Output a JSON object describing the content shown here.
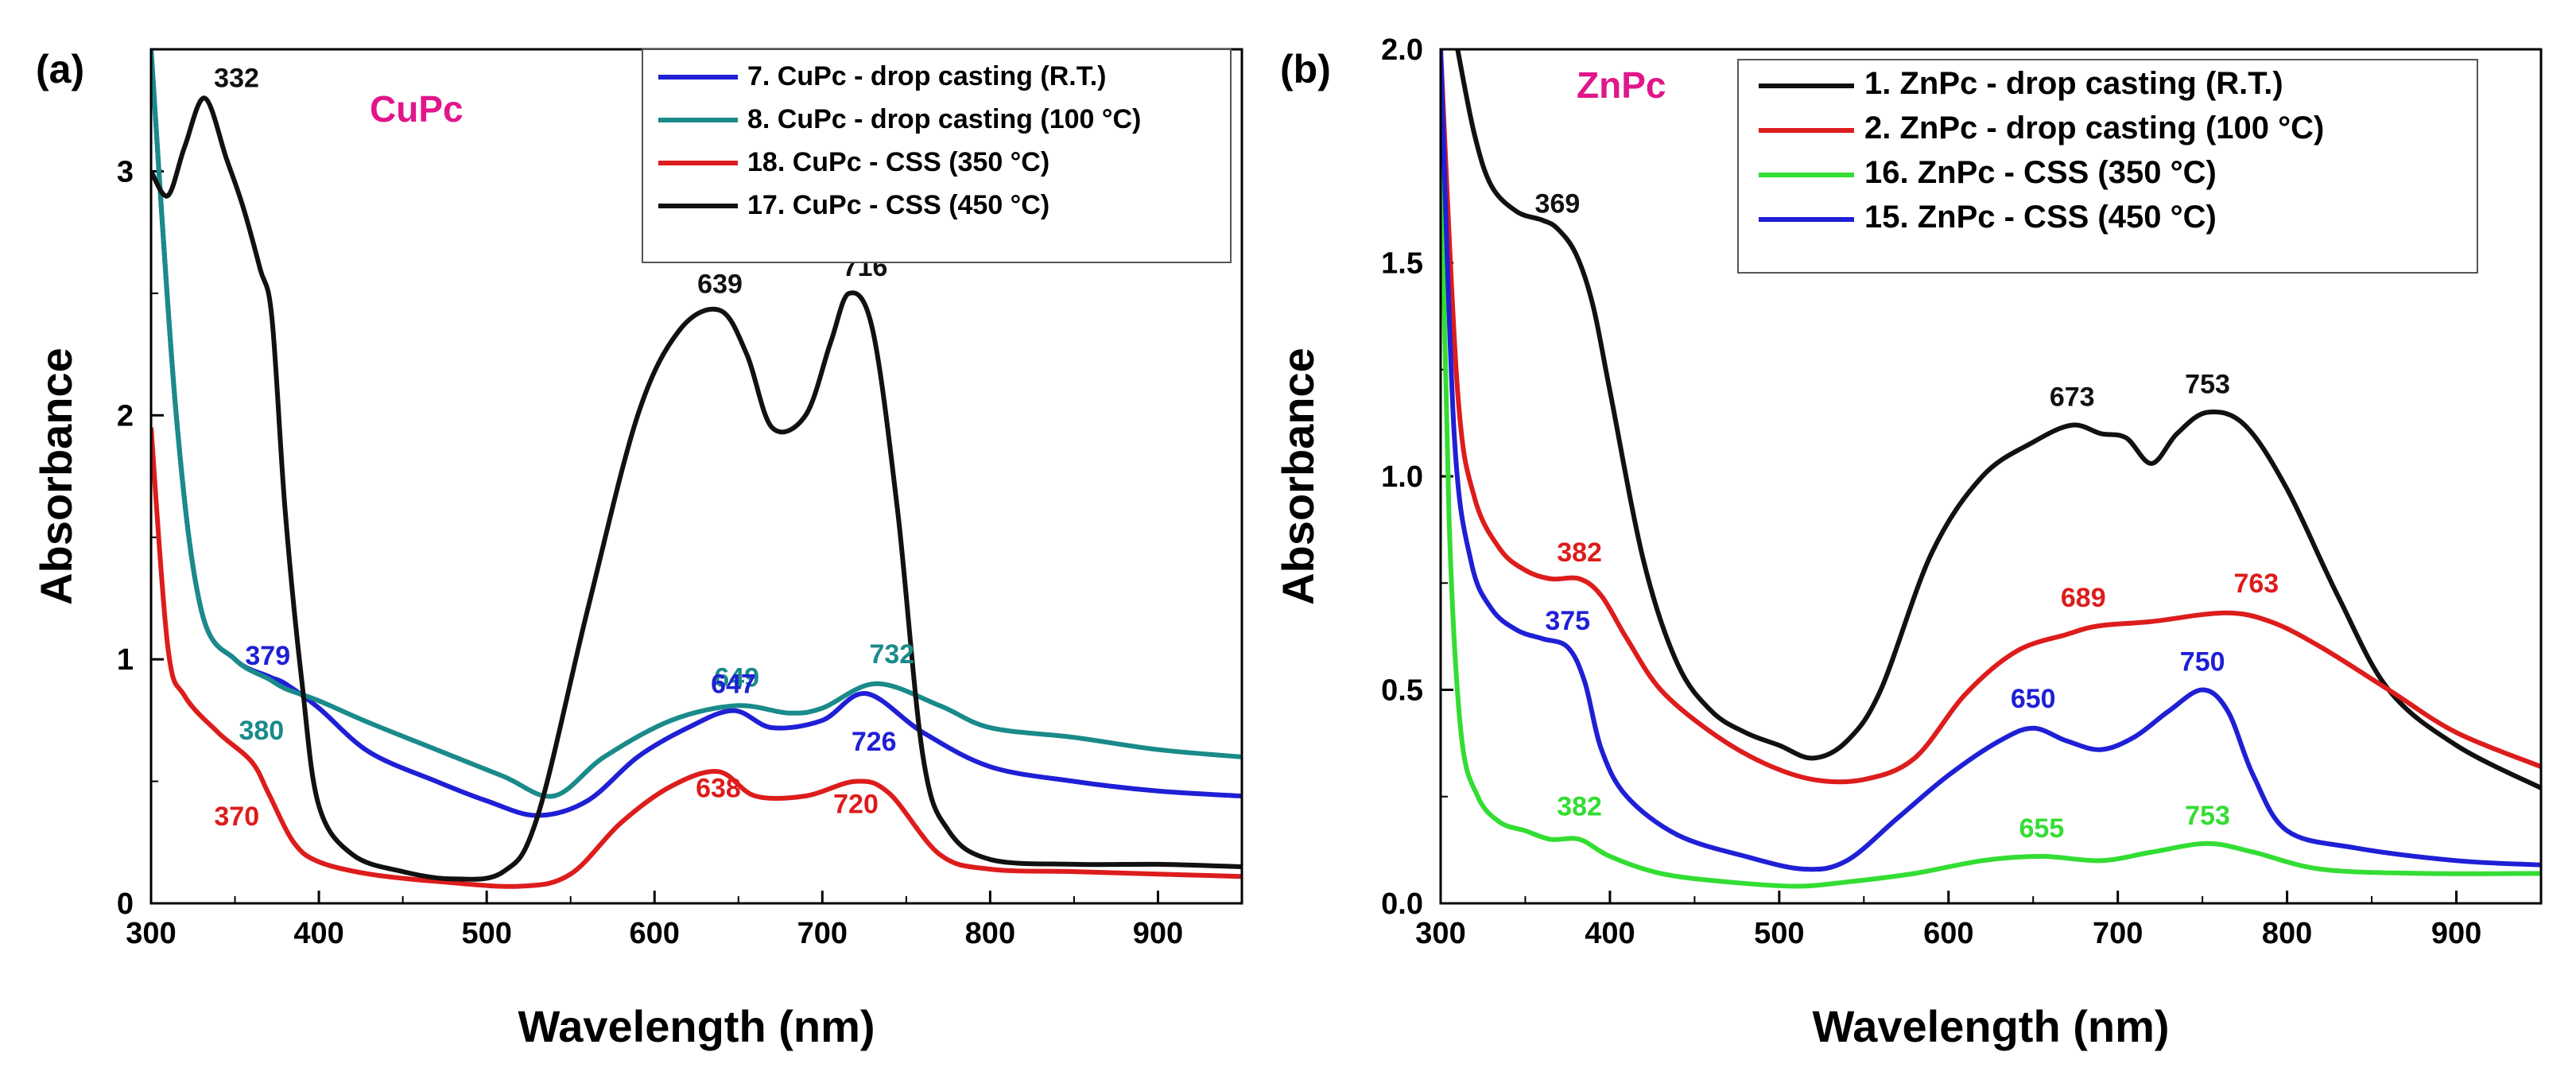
{
  "chart_data": [
    {
      "panel_label": "(a)",
      "type": "line",
      "title": "CuPc",
      "title_color": "#e0168a",
      "xlabel": "Wavelength (nm)",
      "ylabel": "Absorbance",
      "xlim": [
        300,
        950
      ],
      "ylim": [
        0,
        3.5
      ],
      "xticks": [
        300,
        400,
        500,
        600,
        700,
        800,
        900
      ],
      "xtick_labels": [
        "300",
        "400",
        "500",
        "600",
        "700",
        "800",
        "900"
      ],
      "yticks": [
        0,
        1,
        2,
        3
      ],
      "ytick_labels": [
        "0",
        "1",
        "2",
        "3"
      ],
      "legend_position": "top-right",
      "series": [
        {
          "name": "7. CuPc - drop casting (R.T.)",
          "color": "#1f1fd6",
          "x": [
            300,
            315,
            330,
            350,
            370,
            380,
            400,
            430,
            470,
            500,
            530,
            560,
            590,
            620,
            647,
            670,
            700,
            726,
            760,
            800,
            850,
            900,
            950
          ],
          "y": [
            3.5,
            2.0,
            1.2,
            1.0,
            0.93,
            0.9,
            0.8,
            0.62,
            0.5,
            0.42,
            0.36,
            0.42,
            0.6,
            0.72,
            0.79,
            0.72,
            0.75,
            0.86,
            0.7,
            0.56,
            0.5,
            0.46,
            0.44
          ]
        },
        {
          "name": "8. CuPc - drop casting (100 °C)",
          "color": "#1a8a8a",
          "x": [
            300,
            315,
            330,
            350,
            370,
            380,
            400,
            430,
            470,
            510,
            540,
            570,
            610,
            649,
            680,
            700,
            732,
            770,
            800,
            850,
            900,
            950
          ],
          "y": [
            3.5,
            2.0,
            1.2,
            1.0,
            0.92,
            0.88,
            0.83,
            0.74,
            0.63,
            0.52,
            0.44,
            0.6,
            0.75,
            0.81,
            0.78,
            0.8,
            0.9,
            0.81,
            0.72,
            0.68,
            0.63,
            0.6
          ]
        },
        {
          "name": "18. CuPc - CSS (350 °C)",
          "color": "#dd1c1c",
          "x": [
            300,
            310,
            320,
            340,
            360,
            370,
            385,
            400,
            430,
            470,
            520,
            550,
            580,
            610,
            638,
            660,
            690,
            720,
            740,
            770,
            800,
            850,
            900,
            950
          ],
          "y": [
            1.95,
            1.05,
            0.85,
            0.7,
            0.58,
            0.45,
            0.25,
            0.17,
            0.12,
            0.09,
            0.07,
            0.12,
            0.33,
            0.48,
            0.54,
            0.44,
            0.44,
            0.5,
            0.45,
            0.2,
            0.14,
            0.13,
            0.12,
            0.11
          ]
        },
        {
          "name": "17. CuPc - CSS (450 °C)",
          "color": "#111111",
          "x": [
            300,
            310,
            320,
            332,
            345,
            355,
            365,
            372,
            380,
            390,
            400,
            420,
            450,
            480,
            510,
            530,
            560,
            590,
            615,
            639,
            655,
            670,
            690,
            705,
            716,
            730,
            745,
            760,
            775,
            800,
            850,
            900,
            950
          ],
          "y": [
            3.0,
            2.9,
            3.1,
            3.3,
            3.05,
            2.85,
            2.6,
            2.4,
            1.6,
            0.9,
            0.4,
            0.2,
            0.13,
            0.1,
            0.13,
            0.35,
            1.2,
            2.0,
            2.35,
            2.43,
            2.25,
            1.95,
            2.0,
            2.3,
            2.5,
            2.35,
            1.6,
            0.6,
            0.3,
            0.18,
            0.16,
            0.16,
            0.15
          ]
        }
      ],
      "annotations": [
        {
          "text": "332",
          "x": 332,
          "y": 3.3,
          "color": "#111111"
        },
        {
          "text": "639",
          "x": 639,
          "y": 2.43,
          "color": "#111111"
        },
        {
          "text": "716",
          "x": 716,
          "y": 2.5,
          "color": "#111111"
        },
        {
          "text": "379",
          "x": 379,
          "y": 0.9,
          "color": "#1f1fd6"
        },
        {
          "text": "649",
          "x": 649,
          "y": 0.81,
          "color": "#1a8a8a"
        },
        {
          "text": "732",
          "x": 732,
          "y": 0.9,
          "color": "#1a8a8a"
        },
        {
          "text": "380",
          "x": 380,
          "y": 0.88,
          "color": "#1a8a8a"
        },
        {
          "text": "647",
          "x": 647,
          "y": 0.79,
          "color": "#1f1fd6"
        },
        {
          "text": "726",
          "x": 726,
          "y": 0.86,
          "color": "#1f1fd6"
        },
        {
          "text": "370",
          "x": 370,
          "y": 0.45,
          "color": "#dd1c1c"
        },
        {
          "text": "638",
          "x": 638,
          "y": 0.54,
          "color": "#dd1c1c"
        },
        {
          "text": "720",
          "x": 720,
          "y": 0.5,
          "color": "#dd1c1c"
        }
      ]
    },
    {
      "panel_label": "(b)",
      "type": "line",
      "title": "ZnPc",
      "title_color": "#e0168a",
      "xlabel": "Wavelength (nm)",
      "ylabel": "Absorbance",
      "xlim": [
        300,
        950
      ],
      "ylim": [
        0,
        2.0
      ],
      "xticks": [
        300,
        400,
        500,
        600,
        700,
        800,
        900
      ],
      "xtick_labels": [
        "300",
        "400",
        "500",
        "600",
        "700",
        "800",
        "900"
      ],
      "yticks": [
        0,
        0.5,
        1.0,
        1.5,
        2.0
      ],
      "ytick_labels": [
        "0.0",
        "0.5",
        "1.0",
        "1.5",
        "2.0"
      ],
      "legend_position": "top-right",
      "series": [
        {
          "name": "1. ZnPc - drop casting (R.T.)",
          "color": "#111111",
          "x": [
            310,
            320,
            330,
            345,
            360,
            369,
            380,
            390,
            400,
            420,
            440,
            460,
            480,
            500,
            520,
            540,
            560,
            590,
            620,
            650,
            673,
            690,
            705,
            720,
            735,
            753,
            775,
            800,
            830,
            860,
            900,
            950
          ],
          "y": [
            2.0,
            1.8,
            1.68,
            1.62,
            1.6,
            1.58,
            1.52,
            1.4,
            1.2,
            0.8,
            0.56,
            0.45,
            0.4,
            0.37,
            0.34,
            0.38,
            0.5,
            0.82,
            1.0,
            1.08,
            1.12,
            1.1,
            1.09,
            1.03,
            1.1,
            1.15,
            1.12,
            0.97,
            0.72,
            0.5,
            0.37,
            0.27
          ]
        },
        {
          "name": "2. ZnPc - drop casting (100 °C)",
          "color": "#dd1c1c",
          "x": [
            300,
            310,
            320,
            335,
            350,
            365,
            382,
            395,
            410,
            430,
            460,
            490,
            520,
            550,
            580,
            610,
            640,
            670,
            689,
            720,
            763,
            790,
            820,
            860,
            900,
            950
          ],
          "y": [
            2.0,
            1.2,
            0.95,
            0.83,
            0.78,
            0.76,
            0.76,
            0.72,
            0.62,
            0.5,
            0.4,
            0.33,
            0.29,
            0.29,
            0.34,
            0.49,
            0.59,
            0.63,
            0.65,
            0.66,
            0.68,
            0.66,
            0.6,
            0.5,
            0.4,
            0.32
          ]
        },
        {
          "name": "16. ZnPc - CSS (350 °C)",
          "color": "#33dd33",
          "x": [
            300,
            305,
            312,
            322,
            335,
            350,
            365,
            382,
            400,
            430,
            470,
            510,
            540,
            580,
            620,
            655,
            690,
            720,
            753,
            780,
            820,
            880,
            950
          ],
          "y": [
            1.85,
            0.9,
            0.4,
            0.25,
            0.19,
            0.17,
            0.15,
            0.15,
            0.11,
            0.07,
            0.05,
            0.04,
            0.05,
            0.07,
            0.1,
            0.11,
            0.1,
            0.12,
            0.14,
            0.12,
            0.08,
            0.07,
            0.07
          ]
        },
        {
          "name": "15. ZnPc - CSS (450 °C)",
          "color": "#1f1fd6",
          "x": [
            300,
            308,
            318,
            330,
            345,
            360,
            375,
            385,
            395,
            410,
            440,
            480,
            515,
            540,
            570,
            600,
            630,
            650,
            670,
            690,
            710,
            730,
            750,
            765,
            780,
            800,
            840,
            900,
            950
          ],
          "y": [
            2.0,
            1.1,
            0.8,
            0.69,
            0.64,
            0.62,
            0.6,
            0.52,
            0.36,
            0.25,
            0.16,
            0.11,
            0.08,
            0.1,
            0.2,
            0.3,
            0.38,
            0.41,
            0.38,
            0.36,
            0.39,
            0.45,
            0.5,
            0.45,
            0.3,
            0.17,
            0.13,
            0.1,
            0.09
          ]
        }
      ],
      "annotations": [
        {
          "text": "369",
          "x": 369,
          "y": 1.58,
          "color": "#111111"
        },
        {
          "text": "673",
          "x": 673,
          "y": 1.12,
          "color": "#111111"
        },
        {
          "text": "753",
          "x": 753,
          "y": 1.15,
          "color": "#111111"
        },
        {
          "text": "382",
          "x": 382,
          "y": 0.76,
          "color": "#dd1c1c"
        },
        {
          "text": "689",
          "x": 689,
          "y": 0.65,
          "color": "#dd1c1c"
        },
        {
          "text": "763",
          "x": 763,
          "y": 0.68,
          "color": "#dd1c1c"
        },
        {
          "text": "375",
          "x": 375,
          "y": 0.6,
          "color": "#1f1fd6"
        },
        {
          "text": "650",
          "x": 650,
          "y": 0.41,
          "color": "#1f1fd6"
        },
        {
          "text": "750",
          "x": 750,
          "y": 0.5,
          "color": "#1f1fd6"
        },
        {
          "text": "382",
          "x": 382,
          "y": 0.15,
          "color": "#33dd33"
        },
        {
          "text": "655",
          "x": 655,
          "y": 0.11,
          "color": "#33dd33"
        },
        {
          "text": "753",
          "x": 753,
          "y": 0.14,
          "color": "#33dd33"
        }
      ]
    }
  ]
}
